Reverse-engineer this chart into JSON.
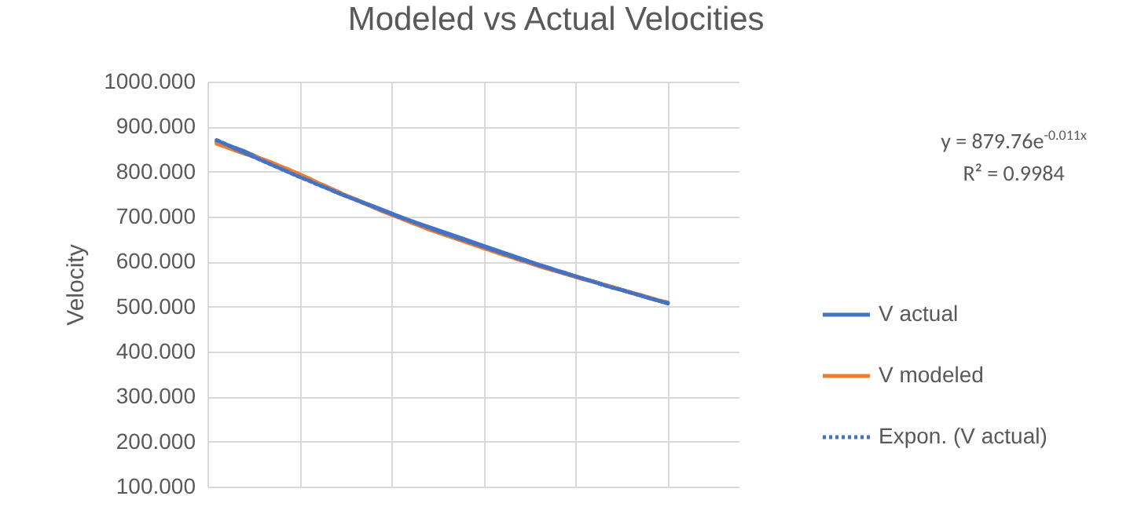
{
  "chart_data": {
    "type": "line",
    "title": "Modeled vs Actual Velocities",
    "ylabel": "Velocity",
    "categories": [
      null,
      null,
      null,
      null,
      null,
      null,
      null,
      null,
      null,
      null,
      null,
      null,
      null,
      null,
      null,
      null,
      null,
      null,
      null,
      null,
      null,
      null,
      null,
      null,
      null,
      null,
      null,
      null,
      null,
      null,
      null,
      null,
      null,
      null,
      null,
      null,
      null,
      null,
      null,
      null,
      null,
      null,
      null,
      null,
      null,
      null,
      null,
      null,
      null,
      null
    ],
    "series": [
      {
        "name": "V actual",
        "color": "#4472c4",
        "line_style": "solid",
        "values": [
          867,
          860,
          853,
          845,
          836,
          827,
          818,
          809,
          800,
          791,
          782,
          773,
          764,
          755,
          747,
          739,
          731,
          723,
          715,
          707,
          699,
          691,
          684,
          677,
          670,
          663,
          656,
          649,
          642,
          635,
          628,
          621,
          614,
          607,
          600,
          593,
          587,
          580,
          574,
          567,
          561,
          555,
          549,
          543,
          537,
          531,
          525,
          519,
          513,
          507
        ]
      },
      {
        "name": "V modeled",
        "color": "#ed7d31",
        "line_style": "solid",
        "values": [
          862,
          855,
          847,
          840,
          834,
          827,
          820,
          811,
          803,
          794,
          785,
          775,
          766,
          757,
          747,
          739,
          730,
          721,
          712,
          704,
          696,
          688,
          680,
          672,
          665,
          658,
          651,
          644,
          637,
          630,
          623,
          616,
          610,
          603,
          597,
          590,
          584,
          578,
          572,
          566,
          560,
          555,
          549,
          543,
          537,
          531,
          526,
          520,
          514,
          509
        ]
      },
      {
        "name": "Expon. (V actual)",
        "type": "line",
        "color": "#4472c4",
        "line_style": "dotted",
        "values": [
          870,
          861,
          851,
          842,
          833,
          824,
          815,
          806,
          797,
          788,
          780,
          771,
          763,
          754,
          746,
          738,
          730,
          722,
          714,
          706,
          698,
          691,
          683,
          676,
          668,
          661,
          654,
          647,
          640,
          633,
          626,
          619,
          612,
          605,
          599,
          592,
          586,
          579,
          573,
          567,
          561,
          555,
          548,
          542,
          537,
          531,
          525,
          519,
          513,
          508
        ]
      }
    ],
    "ylim": [
      100,
      1000
    ],
    "yticks": [
      {
        "value": 100,
        "label": "100.000"
      },
      {
        "value": 200,
        "label": "200.000"
      },
      {
        "value": 300,
        "label": "300.000"
      },
      {
        "value": 400,
        "label": "400.000"
      },
      {
        "value": 500,
        "label": "500.000"
      },
      {
        "value": 600,
        "label": "600.000"
      },
      {
        "value": 700,
        "label": "700.000"
      },
      {
        "value": 800,
        "label": "800.000"
      },
      {
        "value": 900,
        "label": "900.000"
      },
      {
        "value": 1000,
        "label": "1000.000"
      }
    ],
    "grid": true,
    "legend": "right",
    "tick_labels": "y",
    "marker": "none",
    "annotations": [
      "y = 879.76e$^{-0.011x}$",
      "R² = 0.9984"
    ]
  }
}
